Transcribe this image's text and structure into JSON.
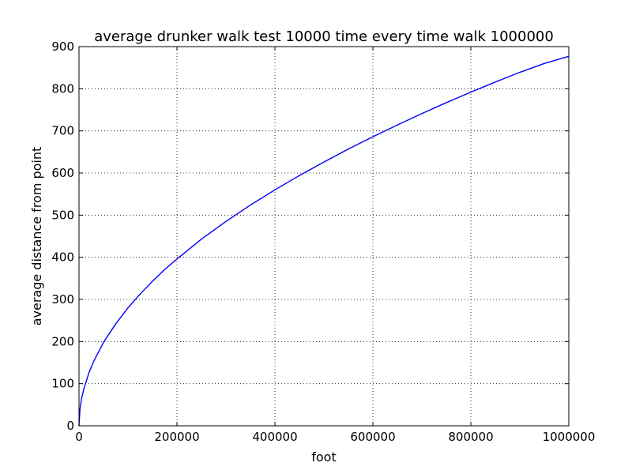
{
  "chart_data": {
    "type": "line",
    "title": "average drunker walk test 10000 time every time walk 1000000",
    "xlabel": "foot",
    "ylabel": "average distance from point",
    "xlim": [
      0,
      1000000
    ],
    "ylim": [
      0,
      900
    ],
    "x_ticks": [
      "0",
      "200000",
      "400000",
      "600000",
      "800000",
      "1000000"
    ],
    "y_ticks": [
      "0",
      "100",
      "200",
      "300",
      "400",
      "500",
      "600",
      "700",
      "800",
      "900"
    ],
    "grid": true,
    "grid_style": "dotted",
    "legend": "none",
    "series": [
      {
        "color": "#0000ff",
        "x": [
          0,
          2000,
          5000,
          10000,
          20000,
          30000,
          50000,
          75000,
          100000,
          125000,
          150000,
          175000,
          200000,
          250000,
          300000,
          350000,
          400000,
          450000,
          500000,
          550000,
          600000,
          650000,
          700000,
          750000,
          800000,
          850000,
          900000,
          950000,
          1000000
        ],
        "y": [
          0,
          40,
          63,
          88,
          125,
          153,
          198,
          242,
          280,
          313,
          343,
          371,
          396,
          443,
          485,
          524,
          560,
          594,
          626,
          657,
          686,
          714,
          741,
          767,
          792,
          816,
          839,
          860,
          877
        ]
      }
    ]
  }
}
